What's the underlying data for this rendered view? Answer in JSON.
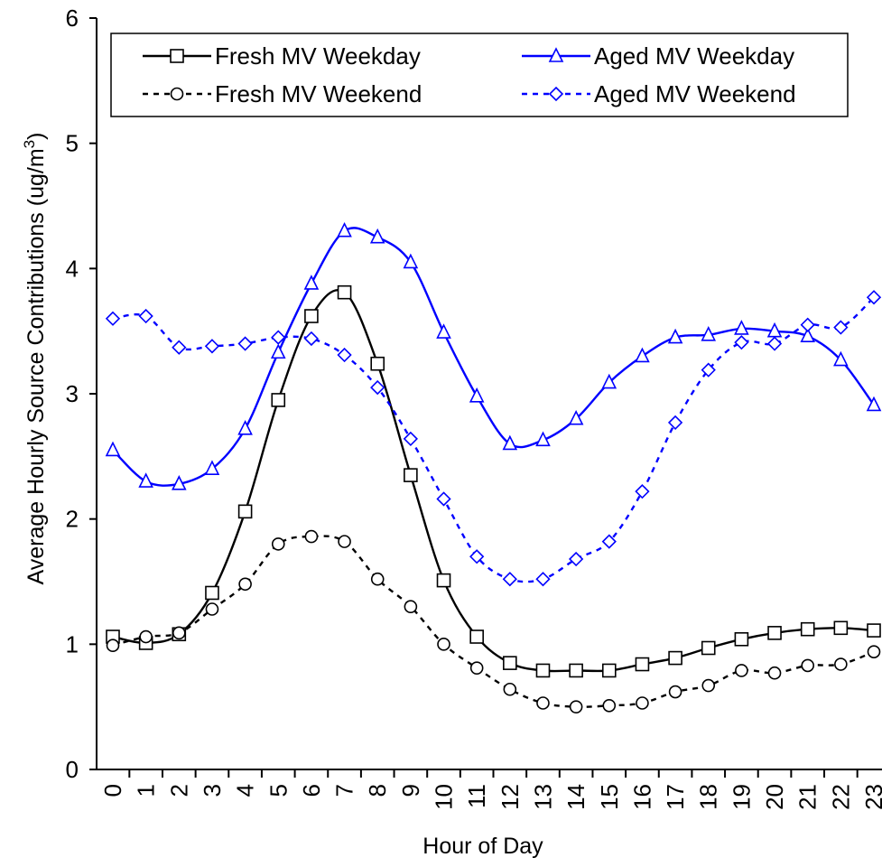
{
  "chart_data": {
    "type": "line",
    "title": "",
    "xlabel": "Hour of Day",
    "ylabel_main": "Average Hourly Source Contributions (ug/m",
    "ylabel_sup": "3",
    "ylabel_tail": ")",
    "ylim": [
      0,
      6
    ],
    "yticks": [
      0,
      1,
      2,
      3,
      4,
      5,
      6
    ],
    "categories": [
      "0",
      "1",
      "2",
      "3",
      "4",
      "5",
      "6",
      "7",
      "8",
      "9",
      "10",
      "11",
      "12",
      "13",
      "14",
      "15",
      "16",
      "17",
      "18",
      "19",
      "20",
      "21",
      "22",
      "23"
    ],
    "grid": false,
    "legend_position": "top",
    "series": [
      {
        "name": "Fresh MV Weekday",
        "color": "#000000",
        "line_style": "solid",
        "marker": "square",
        "values": [
          1.06,
          1.01,
          1.08,
          1.41,
          2.06,
          2.95,
          3.62,
          3.81,
          3.24,
          2.35,
          1.51,
          1.06,
          0.85,
          0.79,
          0.79,
          0.79,
          0.84,
          0.89,
          0.97,
          1.04,
          1.09,
          1.12,
          1.13,
          1.11
        ]
      },
      {
        "name": "Aged MV Weekday",
        "color": "#0000ff",
        "line_style": "solid",
        "marker": "triangle",
        "values": [
          2.55,
          2.3,
          2.28,
          2.4,
          2.72,
          3.33,
          3.88,
          4.3,
          4.25,
          4.05,
          3.49,
          2.98,
          2.6,
          2.63,
          2.8,
          3.09,
          3.3,
          3.45,
          3.47,
          3.52,
          3.5,
          3.46,
          3.27,
          2.91
        ]
      },
      {
        "name": "Fresh MV Weekend",
        "color": "#000000",
        "line_style": "dashed",
        "marker": "circle",
        "values": [
          0.99,
          1.06,
          1.09,
          1.28,
          1.48,
          1.8,
          1.86,
          1.82,
          1.52,
          1.3,
          1.0,
          0.81,
          0.64,
          0.53,
          0.5,
          0.51,
          0.53,
          0.62,
          0.67,
          0.79,
          0.77,
          0.83,
          0.84,
          0.94
        ]
      },
      {
        "name": "Aged MV Weekend",
        "color": "#0000ff",
        "line_style": "dashed",
        "marker": "diamond",
        "values": [
          3.6,
          3.62,
          3.37,
          3.38,
          3.4,
          3.45,
          3.44,
          3.31,
          3.05,
          2.64,
          2.16,
          1.7,
          1.52,
          1.52,
          1.68,
          1.82,
          2.22,
          2.77,
          3.19,
          3.41,
          3.4,
          3.55,
          3.53,
          3.77
        ]
      }
    ]
  }
}
